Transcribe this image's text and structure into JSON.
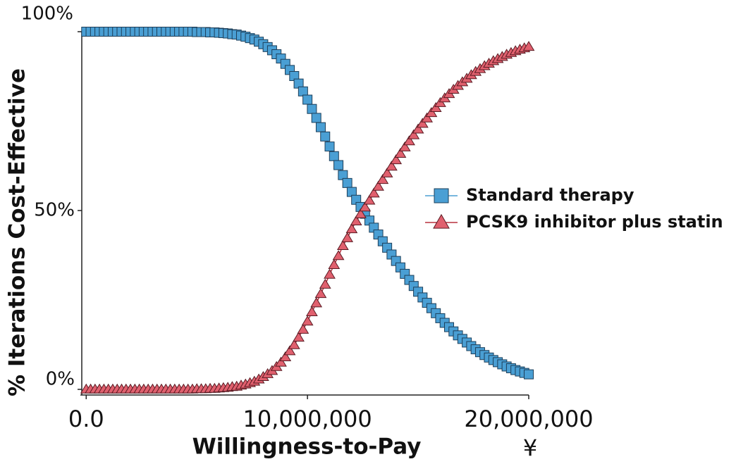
{
  "chart_data": {
    "type": "line",
    "x_label": "Willingness-to-Pay",
    "x_unit": "¥",
    "y_label": "% Iterations Cost-Effective",
    "x": [
      0,
      200000,
      400000,
      600000,
      800000,
      1000000,
      1200000,
      1400000,
      1600000,
      1800000,
      2000000,
      2200000,
      2400000,
      2600000,
      2800000,
      3000000,
      3200000,
      3400000,
      3600000,
      3800000,
      4000000,
      4200000,
      4400000,
      4600000,
      4800000,
      5000000,
      5200000,
      5400000,
      5600000,
      5800000,
      6000000,
      6200000,
      6400000,
      6600000,
      6800000,
      7000000,
      7200000,
      7400000,
      7600000,
      7800000,
      8000000,
      8200000,
      8400000,
      8600000,
      8800000,
      9000000,
      9200000,
      9400000,
      9600000,
      9800000,
      10000000,
      10200000,
      10400000,
      10600000,
      10800000,
      11000000,
      11200000,
      11400000,
      11600000,
      11800000,
      12000000,
      12200000,
      12400000,
      12600000,
      12800000,
      13000000,
      13200000,
      13400000,
      13600000,
      13800000,
      14000000,
      14200000,
      14400000,
      14600000,
      14800000,
      15000000,
      15200000,
      15400000,
      15600000,
      15800000,
      16000000,
      16200000,
      16400000,
      16600000,
      16800000,
      17000000,
      17200000,
      17400000,
      17600000,
      17800000,
      18000000,
      18200000,
      18400000,
      18600000,
      18800000,
      19000000,
      19200000,
      19400000,
      19600000,
      19800000,
      20000000
    ],
    "series": [
      {
        "name": "Standard therapy",
        "color": "#4a9fd4",
        "line_color": "#4a9fd4",
        "marker": "square",
        "values": [
          100,
          100,
          100,
          100,
          100,
          100,
          100,
          100,
          100,
          100,
          100,
          100,
          100,
          100,
          100,
          100,
          100,
          100,
          100,
          100,
          100,
          100,
          100,
          100,
          100,
          99.9,
          99.9,
          99.9,
          99.8,
          99.8,
          99.7,
          99.6,
          99.5,
          99.3,
          99.2,
          98.9,
          98.6,
          98.2,
          97.8,
          97.2,
          96.5,
          95.7,
          94.8,
          93.7,
          92.5,
          91.0,
          89.3,
          87.6,
          85.5,
          83.3,
          81.0,
          78.4,
          75.9,
          73.3,
          70.7,
          67.9,
          65.2,
          62.7,
          59.9,
          57.7,
          55.2,
          53.0,
          51.0,
          49.1,
          47.2,
          45.2,
          43.3,
          41.4,
          39.6,
          37.7,
          35.9,
          34.1,
          32.3,
          30.6,
          28.9,
          27.3,
          25.7,
          24.2,
          22.7,
          21.3,
          19.9,
          18.6,
          17.4,
          16.2,
          15.1,
          14.1,
          13.1,
          12.1,
          11.2,
          10.4,
          9.6,
          8.9,
          8.2,
          7.6,
          7.0,
          6.4,
          5.9,
          5.4,
          5.0,
          4.6,
          4.2
        ]
      },
      {
        "name": "PCSK9 inhibitor plus statin",
        "color": "#e0606e",
        "line_color": "#b8303e",
        "marker": "triangle",
        "values": [
          0,
          0,
          0,
          0,
          0,
          0,
          0,
          0,
          0,
          0,
          0,
          0,
          0,
          0,
          0,
          0,
          0,
          0,
          0,
          0,
          0,
          0,
          0,
          0,
          0,
          0.1,
          0.1,
          0.1,
          0.2,
          0.2,
          0.3,
          0.4,
          0.5,
          0.7,
          0.8,
          1.1,
          1.4,
          1.8,
          2.2,
          2.8,
          3.5,
          4.3,
          5.2,
          6.3,
          7.5,
          9.0,
          10.7,
          12.4,
          14.5,
          16.7,
          19.0,
          21.6,
          24.1,
          26.7,
          29.3,
          32.1,
          34.8,
          37.3,
          40.1,
          42.3,
          44.8,
          47.0,
          49.0,
          50.9,
          52.8,
          54.8,
          56.7,
          58.6,
          60.4,
          62.3,
          64.1,
          65.9,
          67.7,
          69.4,
          71.1,
          72.7,
          74.3,
          75.8,
          77.3,
          78.7,
          80.1,
          81.4,
          82.6,
          83.8,
          84.9,
          85.9,
          86.9,
          87.9,
          88.8,
          89.6,
          90.4,
          91.1,
          91.8,
          92.4,
          93.0,
          93.6,
          94.1,
          94.6,
          95.0,
          95.4,
          95.8
        ]
      }
    ],
    "xlim": [
      -200000,
      20000000
    ],
    "xticks": [
      {
        "value": 0,
        "label": "0.0"
      },
      {
        "value": 10000000,
        "label": "10,000,000"
      },
      {
        "value": 20000000,
        "label": "20,000,000"
      }
    ],
    "ylim": [
      0,
      100
    ],
    "yticks": [
      {
        "value": 0,
        "label": "0%"
      },
      {
        "value": 50,
        "label": "50%"
      },
      {
        "value": 100,
        "label": "100%"
      }
    ],
    "grid": false,
    "legend": "right"
  }
}
